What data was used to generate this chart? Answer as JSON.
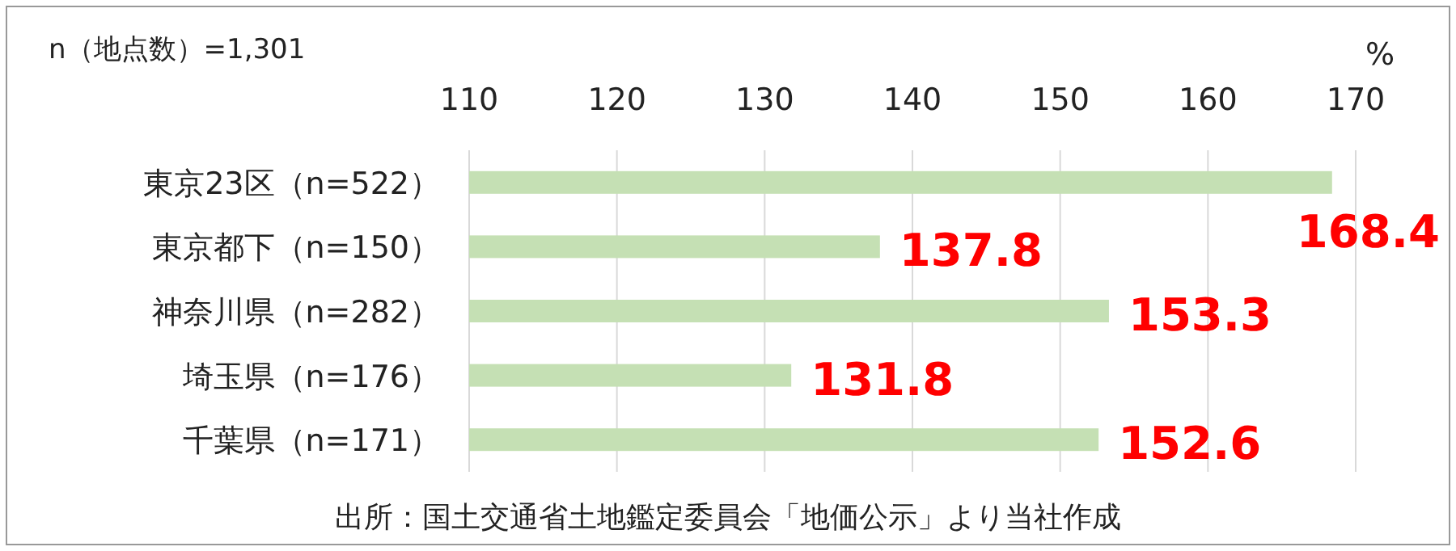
{
  "chart_data": {
    "type": "bar",
    "orientation": "horizontal",
    "subtitle": "n（地点数）=1,301",
    "xlabel": "%",
    "categories": [
      "東京23区（n=522）",
      "東京都下（n=150）",
      "神奈川県（n=282）",
      "埼玉県（n=176）",
      "千葉県（n=171）"
    ],
    "values": [
      168.4,
      137.8,
      153.3,
      131.8,
      152.6
    ],
    "color": "#c5e0b4",
    "xlim": [
      110,
      170
    ],
    "xticks": [
      110,
      120,
      130,
      140,
      150,
      160,
      170
    ],
    "grid": "x",
    "data_labels": true,
    "annotations": [
      "出所：国土交通省土地鑑定委員会「地価公示」より当社作成"
    ]
  }
}
